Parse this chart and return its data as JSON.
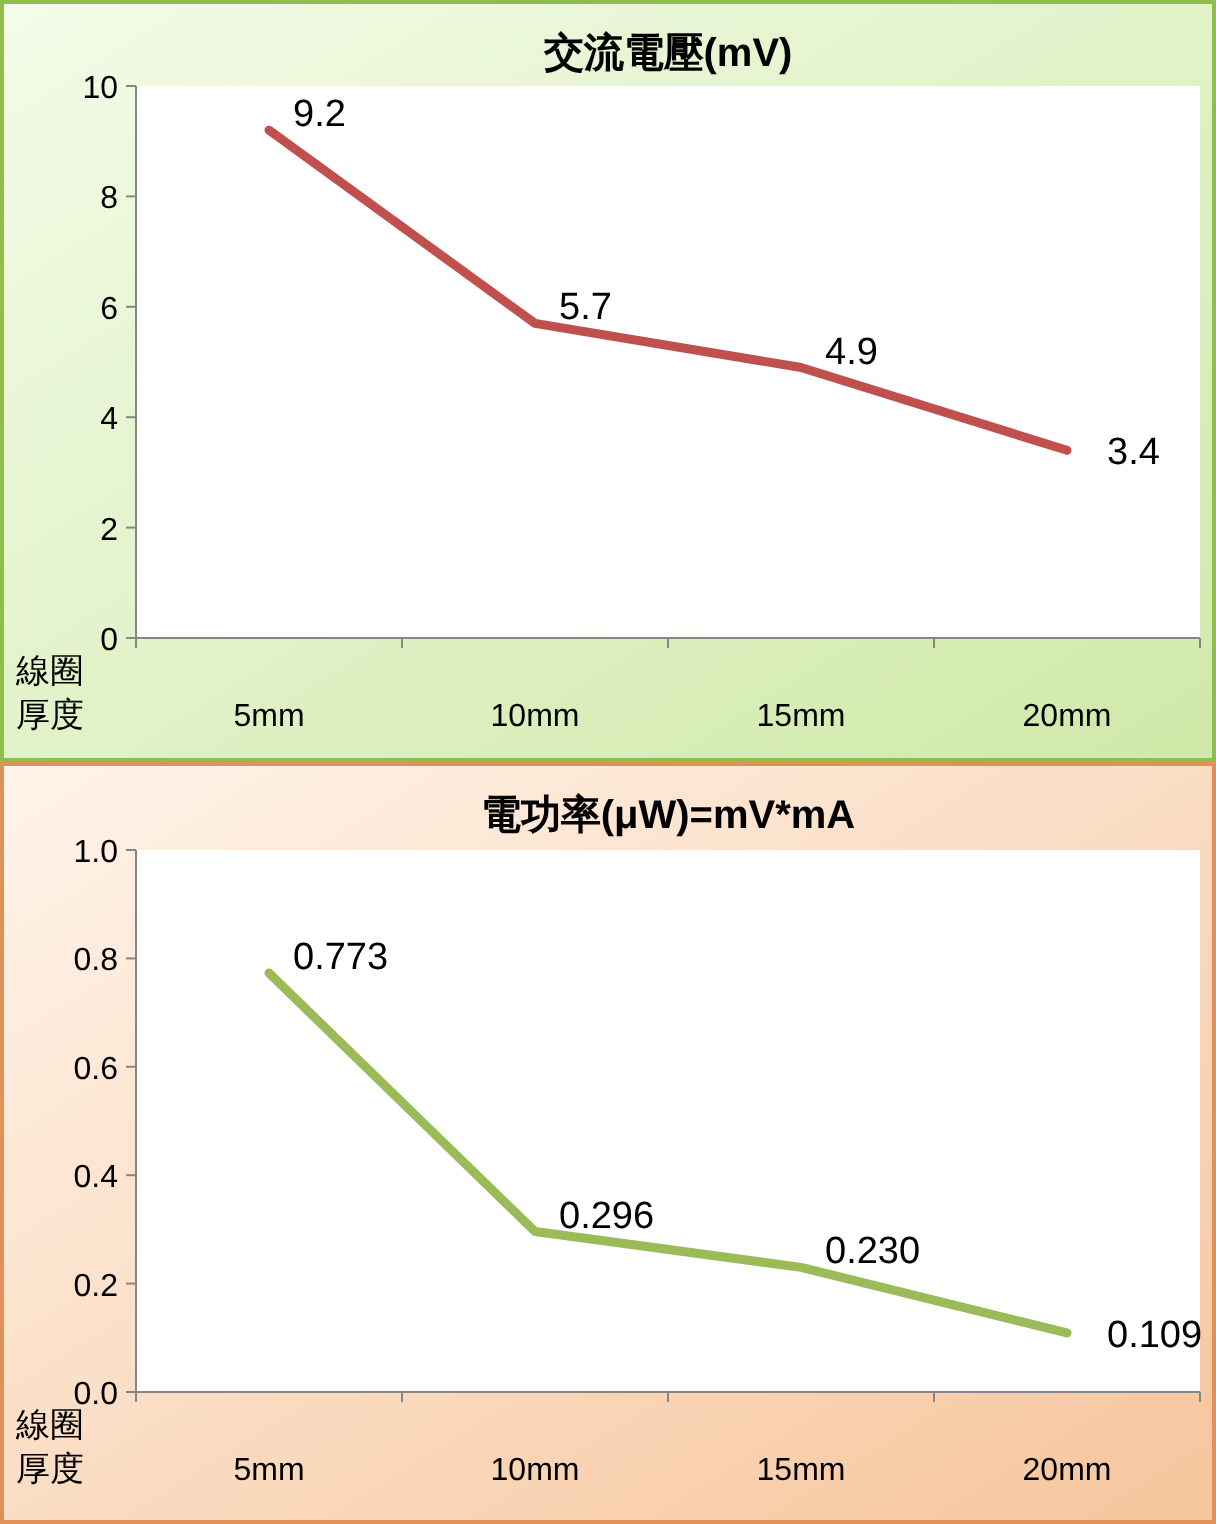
{
  "chart_data": [
    {
      "type": "line",
      "title": "交流電壓(mV)",
      "xlabel": "線圈厚度",
      "categories": [
        "5mm",
        "10mm",
        "15mm",
        "20mm"
      ],
      "series": [
        {
          "color": "#c0504d",
          "values": [
            9.2,
            5.7,
            4.9,
            3.4
          ]
        }
      ],
      "ylim": [
        0,
        10
      ],
      "yticks": [
        0,
        2,
        4,
        6,
        8,
        10
      ],
      "data_labels": true,
      "grid": false,
      "marker": "none"
    },
    {
      "type": "line",
      "title": "電功率(μW)=mV*mA",
      "xlabel": "線圈厚度",
      "categories": [
        "5mm",
        "10mm",
        "15mm",
        "20mm"
      ],
      "series": [
        {
          "color": "#9bbb59",
          "values": [
            0.773,
            0.296,
            0.23,
            0.109
          ],
          "value_labels": [
            "0.773",
            "0.296",
            "0.230",
            "0.109"
          ]
        }
      ],
      "ylim": [
        0,
        1
      ],
      "yticks": [
        {
          "value": 0,
          "label": "0.0"
        },
        {
          "value": 0.2,
          "label": "0.2"
        },
        {
          "value": 0.4,
          "label": "0.4"
        },
        {
          "value": 0.6,
          "label": "0.6"
        },
        {
          "value": 0.8,
          "label": "0.8"
        },
        {
          "value": 1,
          "label": "1.0"
        }
      ],
      "grid": false,
      "marker": "none"
    }
  ]
}
